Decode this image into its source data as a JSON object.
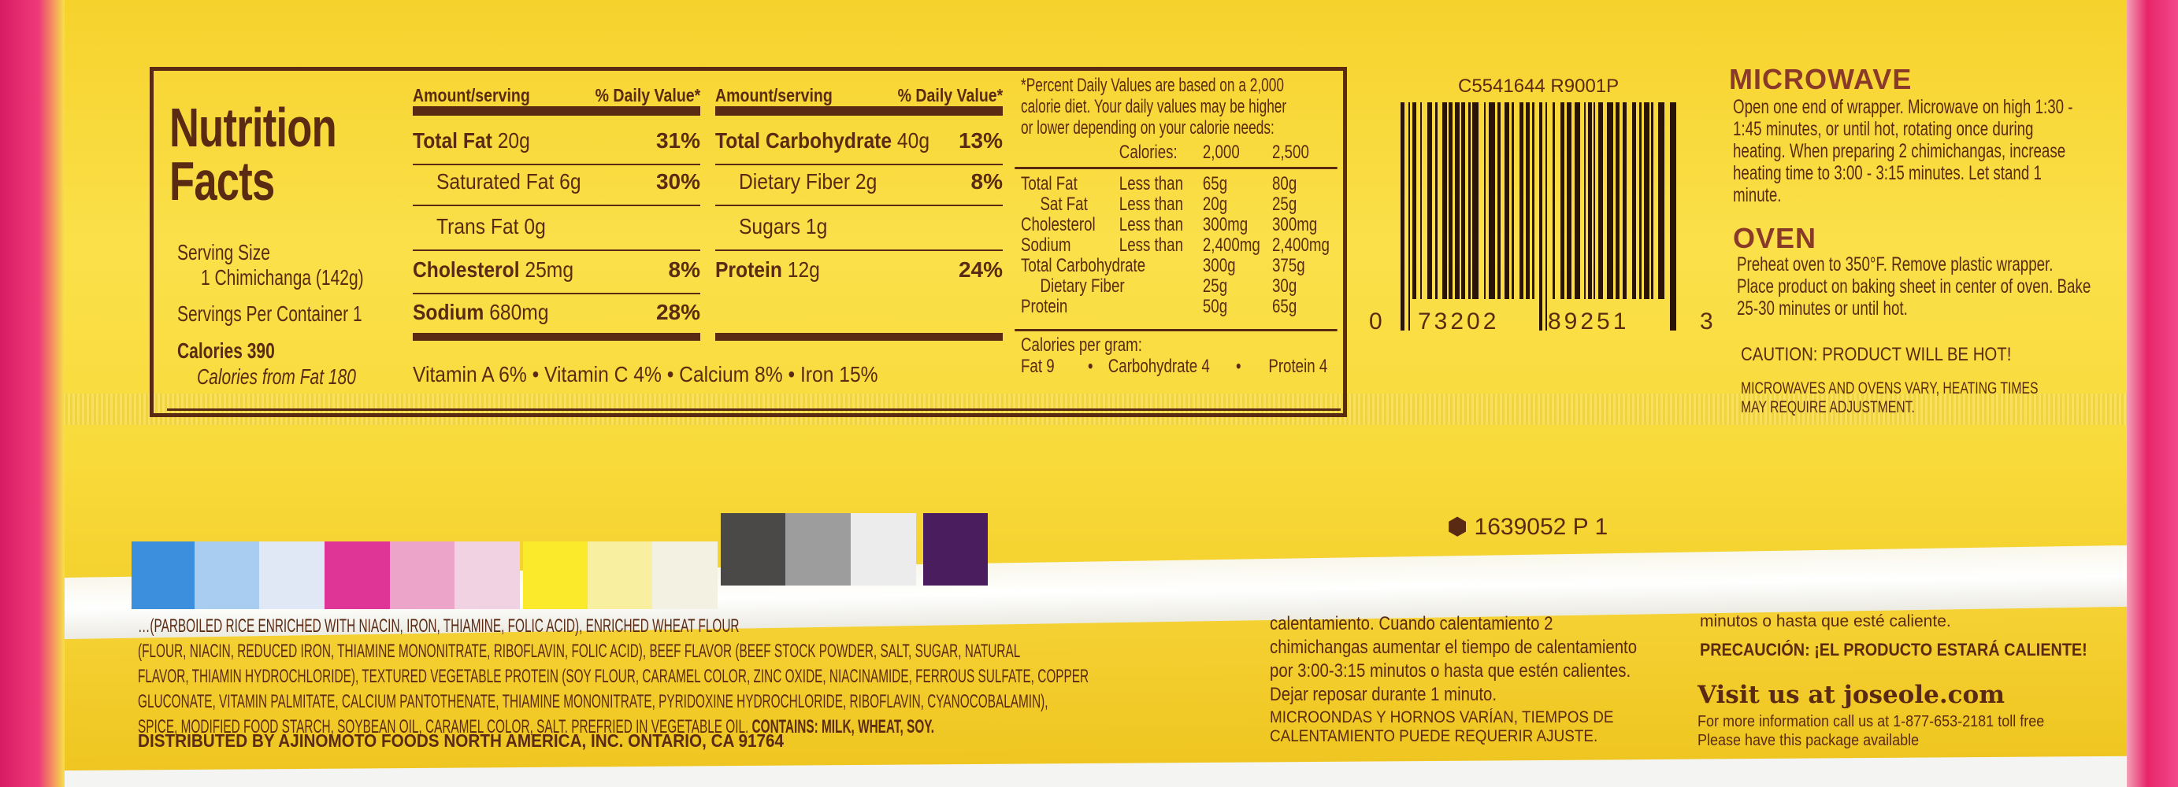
{
  "nutrition": {
    "title": "Nutrition Facts",
    "serving_size_label": "Serving Size",
    "serving_size": "1 Chimichanga (142g)",
    "servings_per_container": "Servings Per Container 1",
    "calories": "Calories 390",
    "calories_from_fat": "Calories from Fat 180",
    "col_header_amount": "Amount/serving",
    "col_header_dv": "% Daily Value*",
    "left_rows": [
      {
        "label": "Total Fat",
        "amount": "20g",
        "dv": "31%",
        "bold": true
      },
      {
        "label": "Saturated Fat",
        "amount": "6g",
        "dv": "30%",
        "bold": false
      },
      {
        "label": "Trans Fat",
        "amount": "0g",
        "dv": "",
        "bold": false
      },
      {
        "label": "Cholesterol",
        "amount": "25mg",
        "dv": "8%",
        "bold": true
      },
      {
        "label": "Sodium",
        "amount": "680mg",
        "dv": "28%",
        "bold": true
      }
    ],
    "right_rows": [
      {
        "label": "Total Carbohydrate",
        "amount": "40g",
        "dv": "13%",
        "bold": true
      },
      {
        "label": "Dietary Fiber",
        "amount": "2g",
        "dv": "8%",
        "bold": false
      },
      {
        "label": "Sugars",
        "amount": "1g",
        "dv": "",
        "bold": false
      },
      {
        "label": "Protein",
        "amount": "12g",
        "dv": "24%",
        "bold": true
      }
    ],
    "vitamins": "Vitamin A 6% • Vitamin C 4% • Calcium 8% • Iron 15%",
    "footnote": "*Percent Daily Values are based on a 2,000\ncalorie diet. Your daily values may be higher\nor lower depending on your calorie needs:",
    "dv_table_header": [
      "Calories:",
      "2,000",
      "2,500"
    ],
    "dv_table": [
      [
        "Total Fat",
        "Less than",
        "65g",
        "80g"
      ],
      [
        "  Sat Fat",
        "Less than",
        "20g",
        "25g"
      ],
      [
        "Cholesterol",
        "Less than",
        "300mg",
        "300mg"
      ],
      [
        "Sodium",
        "Less than",
        "2,400mg",
        "2,400mg"
      ],
      [
        "Total Carbohydrate",
        "",
        "300g",
        "375g"
      ],
      [
        "  Dietary Fiber",
        "",
        "25g",
        "30g"
      ],
      [
        "Protein",
        "",
        "50g",
        "65g"
      ]
    ],
    "cal_per_gram_label": "Calories per gram:",
    "cal_per_gram": [
      "Fat 9",
      "•",
      "Carbohydrate 4",
      "•",
      "Protein 4"
    ]
  },
  "barcode": {
    "code_top": "C5541644 R9001P",
    "digits": [
      "0",
      "73202",
      "89251",
      "3"
    ]
  },
  "instructions": {
    "microwave_title": "MICROWAVE",
    "microwave_text": "Open one end of wrapper. Microwave on high 1:30 - 1:45 minutes, or until hot, rotating once during heating. When preparing 2 chimichangas, increase heating time to 3:00 - 3:15 minutes. Let stand 1 minute.",
    "oven_title": "OVEN",
    "oven_text": "Preheat oven to 350°F. Remove plastic wrapper. Place product on baking sheet in center of oven. Bake 25-30 minutes or until hot.",
    "caution": "CAUTION: PRODUCT WILL BE HOT!",
    "vary": "MICROWAVES AND OVENS VARY, HEATING TIMES\nMAY REQUIRE ADJUSTMENT."
  },
  "lot_code": "1639052 P 1",
  "swatch_colors": [
    "#3b8fdc",
    "#a8cdf0",
    "#dfe8f4",
    "#df3597",
    "#eca5c9",
    "#f1d2e3",
    "#fbe92c",
    "#f8f0a0",
    "#f3f1e2",
    "#4b4848",
    "#9d9d9d",
    "#ececec",
    "#4a1d5e"
  ],
  "ingredients": [
    "…(PARBOILED RICE ENRICHED WITH NIACIN, IRON, THIAMINE, FOLIC ACID), ENRICHED WHEAT FLOUR",
    "(FLOUR, NIACIN, REDUCED IRON, THIAMINE MONONITRATE, RIBOFLAVIN, FOLIC ACID), BEEF FLAVOR (BEEF STOCK POWDER, SALT, SUGAR, NATURAL",
    "FLAVOR, THIAMIN HYDROCHLORIDE), TEXTURED VEGETABLE PROTEIN (SOY FLOUR, CARAMEL COLOR, ZINC OXIDE, NIACINAMIDE, FERROUS SULFATE, COPPER",
    "GLUCONATE, VITAMIN PALMITATE, CALCIUM PANTOTHENATE, THIAMINE MONONITRATE, PYRIDOXINE HYDROCHLORIDE, RIBOFLAVIN, CYANOCOBALAMIN),",
    "SPICE, MODIFIED FOOD STARCH, SOYBEAN OIL, CARAMEL COLOR, SALT. PREFRIED IN VEGETABLE OIL."
  ],
  "contains": "CONTAINS: MILK, WHEAT, SOY.",
  "distributed": "DISTRIBUTED BY AJINOMOTO FOODS NORTH AMERICA, INC. ONTARIO, CA 91764",
  "spanish": {
    "text": "calentamiento. Cuando calentamiento 2\nchimichangas aumentar el tiempo de calentamiento\npor 3:00-3:15 minutos o hasta que estén calientes.\nDejar reposar durante 1 minuto.",
    "vary": "MICROONDAS Y HORNOS VARÍAN, TIEMPOS DE\nCALENTAMIENTO PUEDE REQUERIR AJUSTE.",
    "partial": "minutos o hasta que esté caliente.",
    "caution": "PRECAUCIÓN: ¡EL PRODUCTO ESTARÁ CALIENTE!"
  },
  "contact": {
    "visit": "Visit us at joseole.com",
    "info": "For more information call us at 1-877-653-2181 toll free\nPlease have this package available"
  }
}
